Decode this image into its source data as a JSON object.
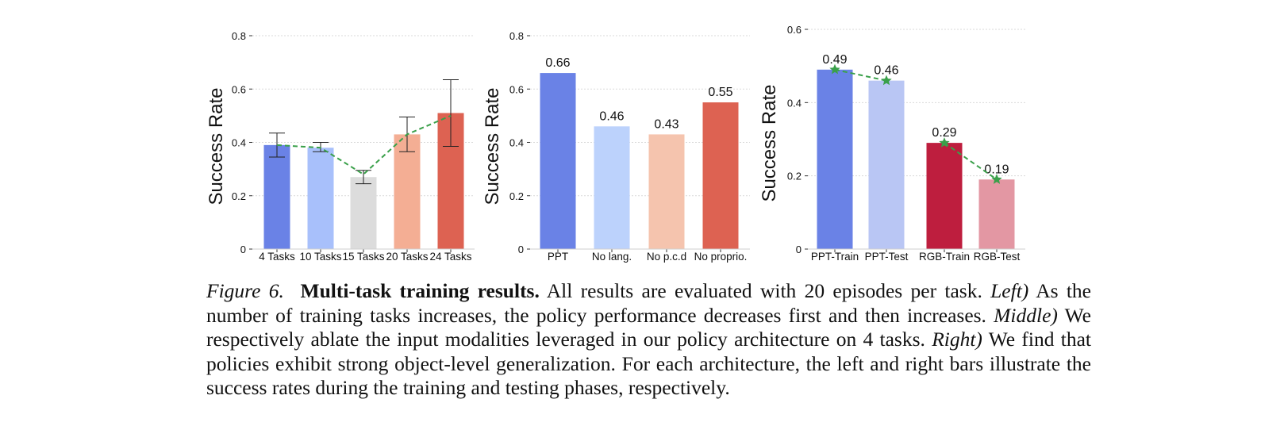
{
  "chart_data": [
    {
      "type": "bar",
      "categories": [
        "4 Tasks",
        "10 Tasks",
        "15 Tasks",
        "20 Tasks",
        "24 Tasks"
      ],
      "values": [
        0.39,
        0.38,
        0.27,
        0.43,
        0.51
      ],
      "error_low": [
        0.345,
        0.365,
        0.245,
        0.365,
        0.385
      ],
      "error_high": [
        0.435,
        0.4,
        0.295,
        0.495,
        0.635
      ],
      "trend": [
        0.39,
        0.38,
        0.28,
        0.43,
        0.5
      ],
      "colors": [
        "#6a82e6",
        "#a8c0fb",
        "#dcdcdc",
        "#f4ae94",
        "#dd6252"
      ],
      "ylabel": "Success Rate",
      "ylim": [
        0,
        0.8
      ],
      "yticks": [
        0,
        0.2,
        0.4,
        0.6,
        0.8
      ],
      "ytick_labels": [
        "0",
        "0.2",
        "0.4",
        "0.6",
        "0.8"
      ],
      "grid": true
    },
    {
      "type": "bar",
      "categories": [
        "PPT",
        "No lang.",
        "No p.c.d",
        "No proprio."
      ],
      "values": [
        0.66,
        0.46,
        0.43,
        0.55
      ],
      "data_labels": [
        "0.66",
        "0.46",
        "0.43",
        "0.55"
      ],
      "colors": [
        "#6a82e6",
        "#bcd2fc",
        "#f5c4ae",
        "#dd6252"
      ],
      "ylabel": "Success Rate",
      "ylim": [
        0,
        0.8
      ],
      "yticks": [
        0,
        0.2,
        0.4,
        0.6,
        0.8
      ],
      "ytick_labels": [
        "0",
        "0.2",
        "0.4",
        "0.6",
        "0.8"
      ],
      "grid": true
    },
    {
      "type": "bar",
      "categories": [
        "PPT-Train",
        "PPT-Test",
        "RGB-Train",
        "RGB-Test"
      ],
      "values": [
        0.49,
        0.46,
        0.29,
        0.19
      ],
      "data_labels": [
        "0.49",
        "0.46",
        "0.29",
        "0.19"
      ],
      "colors": [
        "#6a82e6",
        "#b9c6f4",
        "#be1e3e",
        "#e397a3"
      ],
      "ylabel": "Success Rate",
      "ylim": [
        0,
        0.6
      ],
      "yticks": [
        0,
        0.2,
        0.4,
        0.6
      ],
      "ytick_labels": [
        "0",
        "0.2",
        "0.4",
        "0.6"
      ],
      "grid": true
    }
  ],
  "caption": {
    "figure_label": "Figure 6.",
    "title": "Multi-task training results.",
    "intro": " All results are evaluated with 20 episodes per task. ",
    "left_label": "Left)",
    "left_text": " As the number of training tasks increases, the policy performance decreases first and then increases. ",
    "middle_label": "Middle)",
    "middle_text": " We respectively ablate the input modalities leveraged in our policy architecture on 4 tasks. ",
    "right_label": "Right)",
    "right_text": " We find that policies exhibit strong object-level generalization. For each architecture, the left and right bars illustrate the success rates during the training and testing phases, respectively."
  }
}
